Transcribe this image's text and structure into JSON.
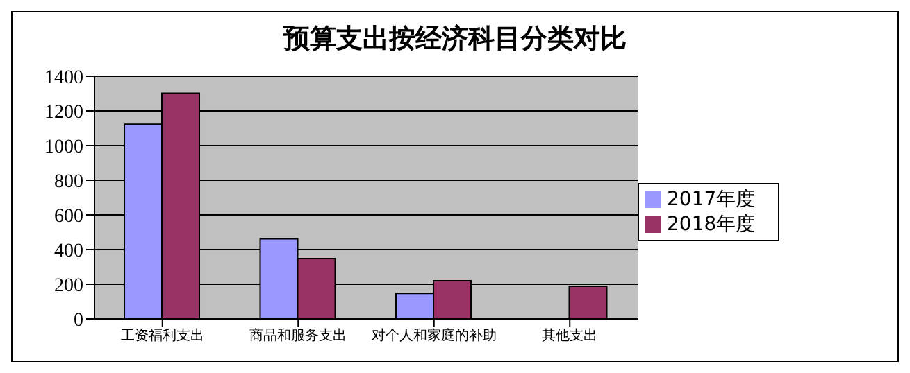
{
  "chart_data": {
    "type": "bar",
    "title": "预算支出按经济科目分类对比",
    "categories": [
      "工资福利支出",
      "商品和服务支出",
      "对个人和家庭的补助",
      "其他支出"
    ],
    "series": [
      {
        "name": "2017年度",
        "color": "#9999ff",
        "values": [
          1123,
          462,
          147,
          null
        ]
      },
      {
        "name": "2018年度",
        "color": "#993366",
        "values": [
          1302,
          348,
          220,
          188
        ]
      }
    ],
    "ylim": [
      0,
      1400
    ],
    "yticks": [
      0,
      200,
      400,
      600,
      800,
      1000,
      1200,
      1400
    ],
    "grid": "y",
    "legend": "right"
  }
}
